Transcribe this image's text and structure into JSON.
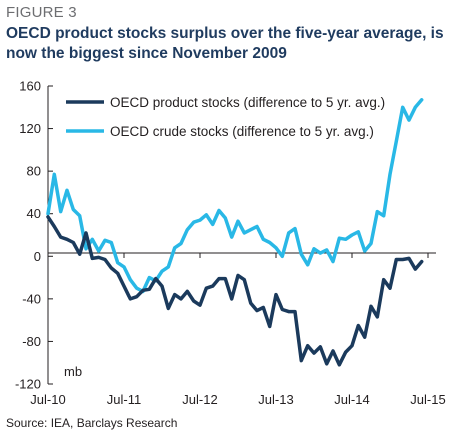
{
  "figure_label": "FIGURE 3",
  "title": "OECD product stocks surplus over the five-year average, is now the biggest since November 2009",
  "source": "Source: IEA, Barclays Research",
  "chart_data": {
    "type": "line",
    "title": "OECD product stocks surplus over the five-year average, is now the biggest since November 2009",
    "xlabel": "",
    "ylabel": "",
    "unit": "mb",
    "ylim": [
      -120,
      160
    ],
    "yticks": [
      -120,
      -80,
      -40,
      0,
      40,
      80,
      120,
      160
    ],
    "xlim": [
      "2010-07",
      "2015-07"
    ],
    "xticks": [
      "Jul-10",
      "Jul-11",
      "Jul-12",
      "Jul-13",
      "Jul-14",
      "Jul-15"
    ],
    "grid": false,
    "legend_position": "top-left",
    "series": [
      {
        "name": "OECD product stocks (difference to 5 yr. avg.)",
        "color": "#1b3a5c",
        "x": [
          "2010-07",
          "2010-08",
          "2010-09",
          "2010-10",
          "2010-11",
          "2010-12",
          "2011-01",
          "2011-02",
          "2011-03",
          "2011-04",
          "2011-05",
          "2011-06",
          "2011-07",
          "2011-08",
          "2011-09",
          "2011-10",
          "2011-11",
          "2011-12",
          "2012-01",
          "2012-02",
          "2012-03",
          "2012-04",
          "2012-05",
          "2012-06",
          "2012-07",
          "2012-08",
          "2012-09",
          "2012-10",
          "2012-11",
          "2012-12",
          "2013-01",
          "2013-02",
          "2013-03",
          "2013-04",
          "2013-05",
          "2013-06",
          "2013-07",
          "2013-08",
          "2013-09",
          "2013-10",
          "2013-11",
          "2013-12",
          "2014-01",
          "2014-02",
          "2014-03",
          "2014-04",
          "2014-05",
          "2014-06",
          "2014-07",
          "2014-08",
          "2014-09",
          "2014-10",
          "2014-11",
          "2014-12",
          "2015-01",
          "2015-02",
          "2015-03",
          "2015-04",
          "2015-05",
          "2015-06"
        ],
        "values": [
          37,
          28,
          18,
          16,
          13,
          2,
          22,
          -2,
          -1,
          -3,
          -11,
          -16,
          -28,
          -40,
          -38,
          -32,
          -31,
          -21,
          -28,
          -49,
          -36,
          -40,
          -33,
          -42,
          -46,
          -30,
          -28,
          -21,
          -21,
          -40,
          -18,
          -22,
          -44,
          -51,
          -48,
          -66,
          -36,
          -50,
          -52,
          -52,
          -98,
          -84,
          -91,
          -85,
          -101,
          -89,
          -102,
          -90,
          -84,
          -65,
          -76,
          -47,
          -57,
          -22,
          -30,
          -3,
          -3,
          -2,
          -12,
          -5
        ]
      },
      {
        "name": "OECD crude stocks (difference to 5 yr. avg.)",
        "color": "#29b8e6",
        "x": [
          "2010-07",
          "2010-08",
          "2010-09",
          "2010-10",
          "2010-11",
          "2010-12",
          "2011-01",
          "2011-02",
          "2011-03",
          "2011-04",
          "2011-05",
          "2011-06",
          "2011-07",
          "2011-08",
          "2011-09",
          "2011-10",
          "2011-11",
          "2011-12",
          "2012-01",
          "2012-02",
          "2012-03",
          "2012-04",
          "2012-05",
          "2012-06",
          "2012-07",
          "2012-08",
          "2012-09",
          "2012-10",
          "2012-11",
          "2012-12",
          "2013-01",
          "2013-02",
          "2013-03",
          "2013-04",
          "2013-05",
          "2013-06",
          "2013-07",
          "2013-08",
          "2013-09",
          "2013-10",
          "2013-11",
          "2013-12",
          "2014-01",
          "2014-02",
          "2014-03",
          "2014-04",
          "2014-05",
          "2014-06",
          "2014-07",
          "2014-08",
          "2014-09",
          "2014-10",
          "2014-11",
          "2014-12",
          "2015-01",
          "2015-02",
          "2015-03",
          "2015-04",
          "2015-05",
          "2015-06"
        ],
        "values": [
          40,
          77,
          42,
          62,
          44,
          38,
          7,
          16,
          5,
          15,
          13,
          -6,
          -10,
          -22,
          -30,
          -33,
          -20,
          -23,
          -14,
          -10,
          8,
          12,
          25,
          32,
          34,
          39,
          30,
          43,
          36,
          18,
          33,
          22,
          25,
          28,
          16,
          13,
          8,
          0,
          22,
          26,
          2,
          -8,
          7,
          3,
          6,
          -5,
          17,
          16,
          20,
          23,
          5,
          12,
          42,
          38,
          77,
          108,
          140,
          128,
          140,
          147
        ]
      }
    ]
  }
}
